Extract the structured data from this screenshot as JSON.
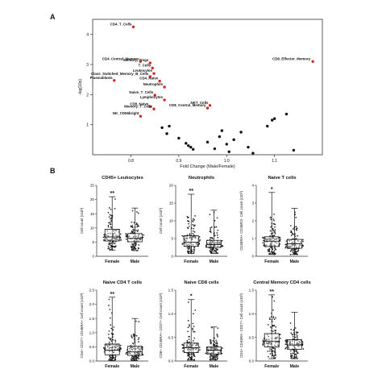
{
  "figure": {
    "panel_a_letter": "A",
    "panel_b_letter": "B",
    "significance_marker_color": "#e8262d",
    "point_color_significant": "#d62728",
    "point_color_other": "#111111"
  },
  "chart_data": [
    {
      "type": "scatter",
      "panel": "A",
      "xlabel": "Fold Change (Male/Female)",
      "ylabel": "-log(10p)",
      "xlim": [
        0.72,
        1.2
      ],
      "ylim": [
        0,
        4.5
      ],
      "xticks": [
        0.8,
        0.9,
        1.0,
        1.1
      ],
      "yticks": [
        1,
        2,
        3,
        4
      ],
      "x_tick_labels": [
        "0.8",
        "0.9",
        "1.0",
        "1.1"
      ],
      "y_tick_labels": [
        "1",
        "2",
        "3",
        "4"
      ],
      "grid": false,
      "labeled_points": [
        {
          "label": "CD4_T_Cells",
          "x": 0.805,
          "y": 4.25,
          "significant": true
        },
        {
          "label": "CD4_Central_Memory",
          "x": 0.82,
          "y": 3.1,
          "significant": true
        },
        {
          "label": "Memory_Tregs",
          "x": 0.84,
          "y": 3.05,
          "significant": true
        },
        {
          "label": "T_Cells",
          "x": 0.845,
          "y": 2.88,
          "significant": true
        },
        {
          "label": "Leukocytes",
          "x": 0.848,
          "y": 2.7,
          "significant": true
        },
        {
          "label": "Class_Switched_Memory_B_Cells",
          "x": 0.84,
          "y": 2.6,
          "significant": true
        },
        {
          "label": "CD4_Naive",
          "x": 0.86,
          "y": 2.45,
          "significant": true
        },
        {
          "label": "Plasmablasts",
          "x": 0.765,
          "y": 2.47,
          "significant": true
        },
        {
          "label": "Neutrophils",
          "x": 0.87,
          "y": 2.25,
          "significant": true
        },
        {
          "label": "Naive_T_Cells",
          "x": 0.85,
          "y": 1.98,
          "significant": true
        },
        {
          "label": "Lymphocytes",
          "x": 0.87,
          "y": 1.82,
          "significant": true
        },
        {
          "label": "CD8_Naive",
          "x": 0.84,
          "y": 1.6,
          "significant": true
        },
        {
          "label": "Memory_T_Cells",
          "x": 0.848,
          "y": 1.52,
          "significant": true
        },
        {
          "label": "NKT_Cells",
          "x": 0.965,
          "y": 1.64,
          "significant": true
        },
        {
          "label": "CD8_Central_Memory",
          "x": 0.96,
          "y": 1.55,
          "significant": true
        },
        {
          "label": "NK_CD56bright",
          "x": 0.82,
          "y": 1.28,
          "significant": true
        },
        {
          "label": "CD8_Effector_Memory",
          "x": 1.18,
          "y": 3.1,
          "significant": true
        }
      ],
      "other_points": [
        {
          "x": 0.865,
          "y": 0.9
        },
        {
          "x": 0.88,
          "y": 0.95
        },
        {
          "x": 0.875,
          "y": 0.7
        },
        {
          "x": 0.9,
          "y": 0.55
        },
        {
          "x": 0.915,
          "y": 0.38
        },
        {
          "x": 0.92,
          "y": 0.3
        },
        {
          "x": 0.925,
          "y": 0.25
        },
        {
          "x": 0.93,
          "y": 0.18
        },
        {
          "x": 0.96,
          "y": 0.42
        },
        {
          "x": 0.975,
          "y": 0.2
        },
        {
          "x": 0.985,
          "y": 0.6
        },
        {
          "x": 0.99,
          "y": 0.8
        },
        {
          "x": 1.0,
          "y": 0.35
        },
        {
          "x": 1.005,
          "y": 0.1
        },
        {
          "x": 1.015,
          "y": 0.5
        },
        {
          "x": 1.03,
          "y": 0.75
        },
        {
          "x": 1.045,
          "y": 0.25
        },
        {
          "x": 1.055,
          "y": 0.05
        },
        {
          "x": 1.085,
          "y": 0.95
        },
        {
          "x": 1.095,
          "y": 1.15
        },
        {
          "x": 1.1,
          "y": 1.2
        },
        {
          "x": 1.125,
          "y": 1.35
        },
        {
          "x": 1.14,
          "y": 0.15
        }
      ]
    },
    {
      "type": "box-dot",
      "panel": "B",
      "title": "CD45+ Leukocytes",
      "ylabel": "Cell count (x10³)",
      "ylim": [
        0,
        25
      ],
      "yticks": [
        0,
        5,
        10,
        15,
        20,
        25
      ],
      "categories": [
        "Female",
        "Male"
      ],
      "significance": "**",
      "series": [
        {
          "name": "Female",
          "min": 2.2,
          "q1": 5.4,
          "median": 6.8,
          "q3": 9.5,
          "max": 21.0
        },
        {
          "name": "Male",
          "min": 2.0,
          "q1": 5.1,
          "median": 6.3,
          "q3": 8.0,
          "max": 17.0
        }
      ]
    },
    {
      "type": "box-dot",
      "panel": "B",
      "title": "Neutrophils",
      "ylabel": "Cell count (x10³)",
      "ylim": [
        0,
        20
      ],
      "yticks": [
        0,
        5,
        10,
        15,
        20
      ],
      "categories": [
        "Female",
        "Male"
      ],
      "significance": "**",
      "series": [
        {
          "name": "Female",
          "min": 0.8,
          "q1": 2.8,
          "median": 4.0,
          "q3": 5.8,
          "max": 17.5
        },
        {
          "name": "Male",
          "min": 0.8,
          "q1": 2.5,
          "median": 3.3,
          "q3": 4.5,
          "max": 13.0
        }
      ]
    },
    {
      "type": "box-dot",
      "panel": "B",
      "title": "Naive T cells",
      "ylabel": "CD45RA+ CD45RO- Cell count (x10³)",
      "ylim": [
        0,
        4
      ],
      "yticks": [
        0,
        1,
        2,
        3,
        4
      ],
      "categories": [
        "Female",
        "Male"
      ],
      "significance": "*",
      "series": [
        {
          "name": "Female",
          "min": 0.1,
          "q1": 0.55,
          "median": 0.85,
          "q3": 1.1,
          "max": 3.6
        },
        {
          "name": "Male",
          "min": 0.1,
          "q1": 0.45,
          "median": 0.7,
          "q3": 0.95,
          "max": 2.7
        }
      ]
    },
    {
      "type": "box-dot",
      "panel": "B",
      "title": "Naive CD4 T cells",
      "ylabel": "CD4+ CD27+ CD45RA+ Cell count (x10³)",
      "ylim": [
        0,
        2.5
      ],
      "yticks": [
        0,
        0.5,
        1.0,
        1.5,
        2.0,
        2.5
      ],
      "categories": [
        "Female",
        "Male"
      ],
      "significance": "**",
      "series": [
        {
          "name": "Female",
          "min": 0.02,
          "q1": 0.22,
          "median": 0.38,
          "q3": 0.6,
          "max": 2.25
        },
        {
          "name": "Male",
          "min": 0.02,
          "q1": 0.2,
          "median": 0.32,
          "q3": 0.52,
          "max": 1.5
        }
      ]
    },
    {
      "type": "box-dot",
      "panel": "B",
      "title": "Naive CD8 cells",
      "ylabel": "CD8+ CD45RA+ CD27+ Cell count (x10³)",
      "ylim": [
        0,
        1.5
      ],
      "yticks": [
        0,
        0.5,
        1.0,
        1.5
      ],
      "categories": [
        "Female",
        "Male"
      ],
      "significance": "*",
      "series": [
        {
          "name": "Female",
          "min": 0.02,
          "q1": 0.18,
          "median": 0.28,
          "q3": 0.38,
          "max": 1.3
        },
        {
          "name": "Male",
          "min": 0.02,
          "q1": 0.15,
          "median": 0.23,
          "q3": 0.3,
          "max": 0.72
        }
      ]
    },
    {
      "type": "box-dot",
      "panel": "B",
      "title": "Central Memory CD4 cells",
      "ylabel": "CD4+ CD45RA- CD27+ Cell count (x10³)",
      "ylim": [
        0,
        1.5
      ],
      "yticks": [
        0,
        0.5,
        1.0,
        1.5
      ],
      "categories": [
        "Female",
        "Male"
      ],
      "significance": "**",
      "series": [
        {
          "name": "Female",
          "min": 0.05,
          "q1": 0.3,
          "median": 0.42,
          "q3": 0.58,
          "max": 1.4
        },
        {
          "name": "Male",
          "min": 0.05,
          "q1": 0.25,
          "median": 0.34,
          "q3": 0.45,
          "max": 1.03
        }
      ]
    }
  ]
}
